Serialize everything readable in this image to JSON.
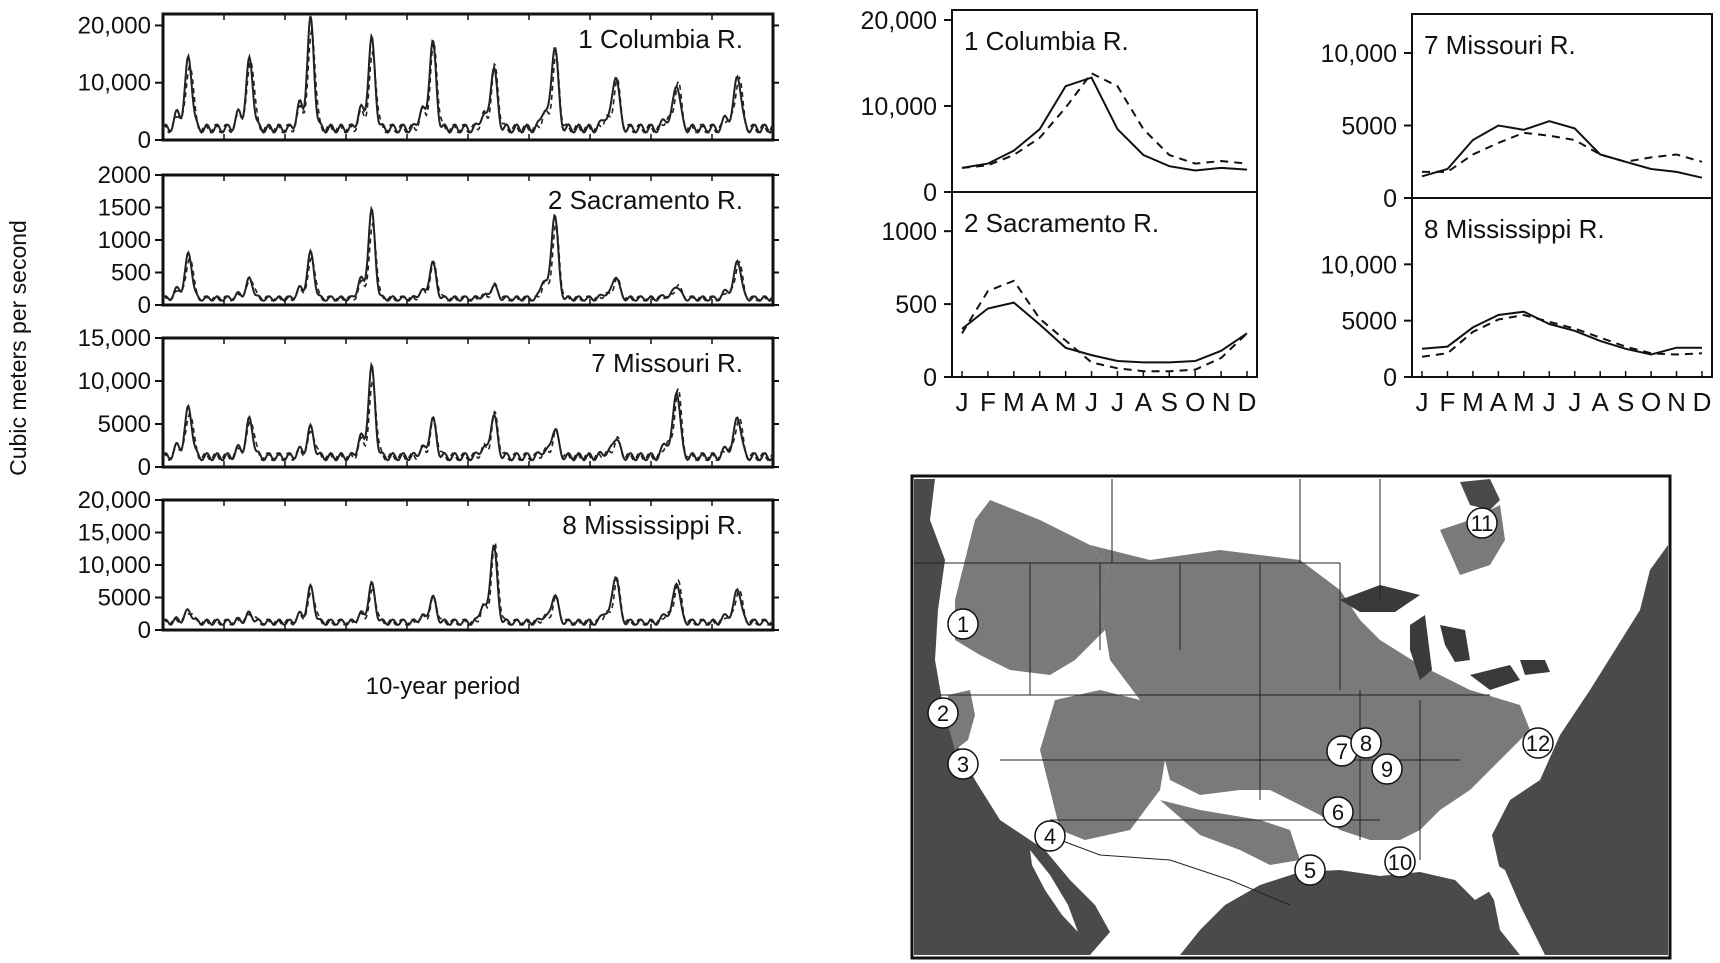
{
  "figure": {
    "y_label": "Cubic meters per second",
    "x_label": "10-year period"
  },
  "chart_data": [
    {
      "type": "line",
      "panel": "decadal",
      "title": "1 Columbia R.",
      "xlabel": "10-year period",
      "ylabel": "Cubic meters per second",
      "ylim": [
        0,
        22000
      ],
      "yticks": [
        0,
        10000,
        20000
      ],
      "tick_labels": [
        "0",
        "10,000",
        "20,000"
      ],
      "peaks": [
        14500,
        14000,
        21000,
        17500,
        17000,
        12500,
        16500,
        11500,
        10000,
        11500
      ],
      "base": 2000,
      "series": [
        {
          "style": "solid"
        },
        {
          "style": "dashed"
        }
      ]
    },
    {
      "type": "line",
      "panel": "decadal",
      "title": "2 Sacramento R.",
      "xlabel": "10-year period",
      "ylabel": "Cubic meters per second",
      "ylim": [
        0,
        2000
      ],
      "yticks": [
        0,
        500,
        1000,
        1500,
        2000
      ],
      "tick_labels": [
        "0",
        "500",
        "1000",
        "1500",
        "2000"
      ],
      "peaks": [
        800,
        400,
        800,
        1450,
        650,
        300,
        1400,
        450,
        300,
        700
      ],
      "base": 100,
      "series": [
        {
          "style": "solid"
        },
        {
          "style": "dashed"
        }
      ]
    },
    {
      "type": "line",
      "panel": "decadal",
      "title": "7 Missouri R.",
      "xlabel": "10-year period",
      "ylabel": "Cubic meters per second",
      "ylim": [
        0,
        15000
      ],
      "yticks": [
        0,
        5000,
        10000,
        15000
      ],
      "tick_labels": [
        "0",
        "5000",
        "10,000",
        "15,000"
      ],
      "peaks": [
        7000,
        5500,
        4500,
        11500,
        5500,
        6000,
        4500,
        3500,
        9000,
        6000
      ],
      "base": 1200,
      "series": [
        {
          "style": "solid"
        },
        {
          "style": "dashed"
        }
      ]
    },
    {
      "type": "line",
      "panel": "decadal",
      "title": "8 Mississippi R.",
      "xlabel": "10-year period",
      "ylabel": "Cubic meters per second",
      "ylim": [
        0,
        20000
      ],
      "yticks": [
        0,
        5000,
        10000,
        15000,
        20000
      ],
      "tick_labels": [
        "0",
        "5000",
        "10,000",
        "15,000",
        "20,000"
      ],
      "peaks": [
        3000,
        2500,
        6500,
        7000,
        5000,
        13000,
        5500,
        8500,
        7500,
        6500
      ],
      "base": 1200,
      "series": [
        {
          "style": "solid"
        },
        {
          "style": "dashed"
        }
      ]
    },
    {
      "type": "line",
      "panel": "seasonal",
      "title": "1 Columbia R.",
      "ylim": [
        0,
        20000
      ],
      "yticks": [
        0,
        10000,
        20000
      ],
      "tick_labels": [
        "0",
        "10,000",
        "20,000"
      ],
      "categories": [
        "J",
        "F",
        "M",
        "A",
        "M",
        "J",
        "J",
        "A",
        "S",
        "O",
        "N",
        "D"
      ],
      "series": [
        {
          "style": "solid",
          "values": [
            2800,
            3300,
            4800,
            7300,
            12300,
            13300,
            7300,
            4300,
            3000,
            2500,
            2800,
            2600
          ]
        },
        {
          "style": "dashed",
          "values": [
            2800,
            3100,
            4300,
            6300,
            9800,
            13800,
            12300,
            7300,
            4300,
            3300,
            3600,
            3300
          ]
        }
      ]
    },
    {
      "type": "line",
      "panel": "seasonal",
      "title": "2 Sacramento R.",
      "ylim": [
        0,
        1200
      ],
      "yticks": [
        0,
        500,
        1000
      ],
      "tick_labels": [
        "0",
        "500",
        "1000"
      ],
      "categories": [
        "J",
        "F",
        "M",
        "A",
        "M",
        "J",
        "J",
        "A",
        "S",
        "O",
        "N",
        "D"
      ],
      "series": [
        {
          "style": "solid",
          "values": [
            330,
            470,
            510,
            360,
            200,
            150,
            110,
            100,
            100,
            110,
            180,
            300
          ]
        },
        {
          "style": "dashed",
          "values": [
            300,
            590,
            660,
            400,
            250,
            100,
            60,
            40,
            40,
            50,
            130,
            300
          ]
        }
      ]
    },
    {
      "type": "line",
      "panel": "seasonal",
      "title": "7 Missouri R.",
      "ylim": [
        0,
        12000
      ],
      "yticks": [
        0,
        5000,
        10000
      ],
      "tick_labels": [
        "0",
        "5000",
        "10,000"
      ],
      "categories": [
        "J",
        "F",
        "M",
        "A",
        "M",
        "J",
        "J",
        "A",
        "S",
        "O",
        "N",
        "D"
      ],
      "series": [
        {
          "style": "solid",
          "values": [
            1500,
            2000,
            4000,
            5000,
            4700,
            5300,
            4800,
            3000,
            2500,
            2000,
            1800,
            1400
          ]
        },
        {
          "style": "dashed",
          "values": [
            1800,
            1800,
            3000,
            3800,
            4500,
            4300,
            4000,
            3000,
            2500,
            2800,
            3000,
            2500
          ]
        }
      ]
    },
    {
      "type": "line",
      "panel": "seasonal",
      "title": "8 Mississippi R.",
      "ylim": [
        0,
        15000
      ],
      "yticks": [
        0,
        5000,
        10000
      ],
      "tick_labels": [
        "0",
        "5000",
        "10,000"
      ],
      "categories": [
        "J",
        "F",
        "M",
        "A",
        "M",
        "J",
        "J",
        "A",
        "S",
        "O",
        "N",
        "D"
      ],
      "series": [
        {
          "style": "solid",
          "values": [
            2500,
            2700,
            4400,
            5500,
            5800,
            4700,
            4100,
            3200,
            2500,
            2000,
            2600,
            2600
          ]
        },
        {
          "style": "dashed",
          "values": [
            1800,
            2100,
            4000,
            5100,
            5500,
            4900,
            4300,
            3500,
            2700,
            2100,
            2000,
            2100
          ]
        }
      ]
    }
  ],
  "map": {
    "labels": [
      "1",
      "2",
      "3",
      "4",
      "5",
      "6",
      "7",
      "8",
      "9",
      "10",
      "11",
      "12"
    ]
  }
}
